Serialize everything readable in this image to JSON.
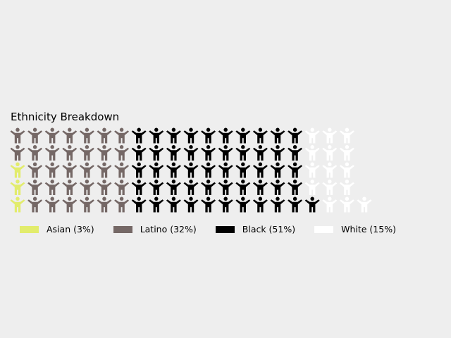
{
  "chart_data": {
    "type": "waffle",
    "title": "Ethnicity Breakdown",
    "icon": "person-arms-raised-icon",
    "rows": 5,
    "series": [
      {
        "name": "Asian",
        "value": 3,
        "color": "#e2ec6c",
        "label": "Asian (3%)"
      },
      {
        "name": "Latino",
        "value": 32,
        "color": "#756866",
        "label": "Latino (32%)"
      },
      {
        "name": "Black",
        "value": 51,
        "color": "#000000",
        "label": "Black (51%)"
      },
      {
        "name": "White",
        "value": 15,
        "color": "#ffffff",
        "label": "White (15%)"
      }
    ],
    "legend_position": "bottom",
    "grid": false
  }
}
